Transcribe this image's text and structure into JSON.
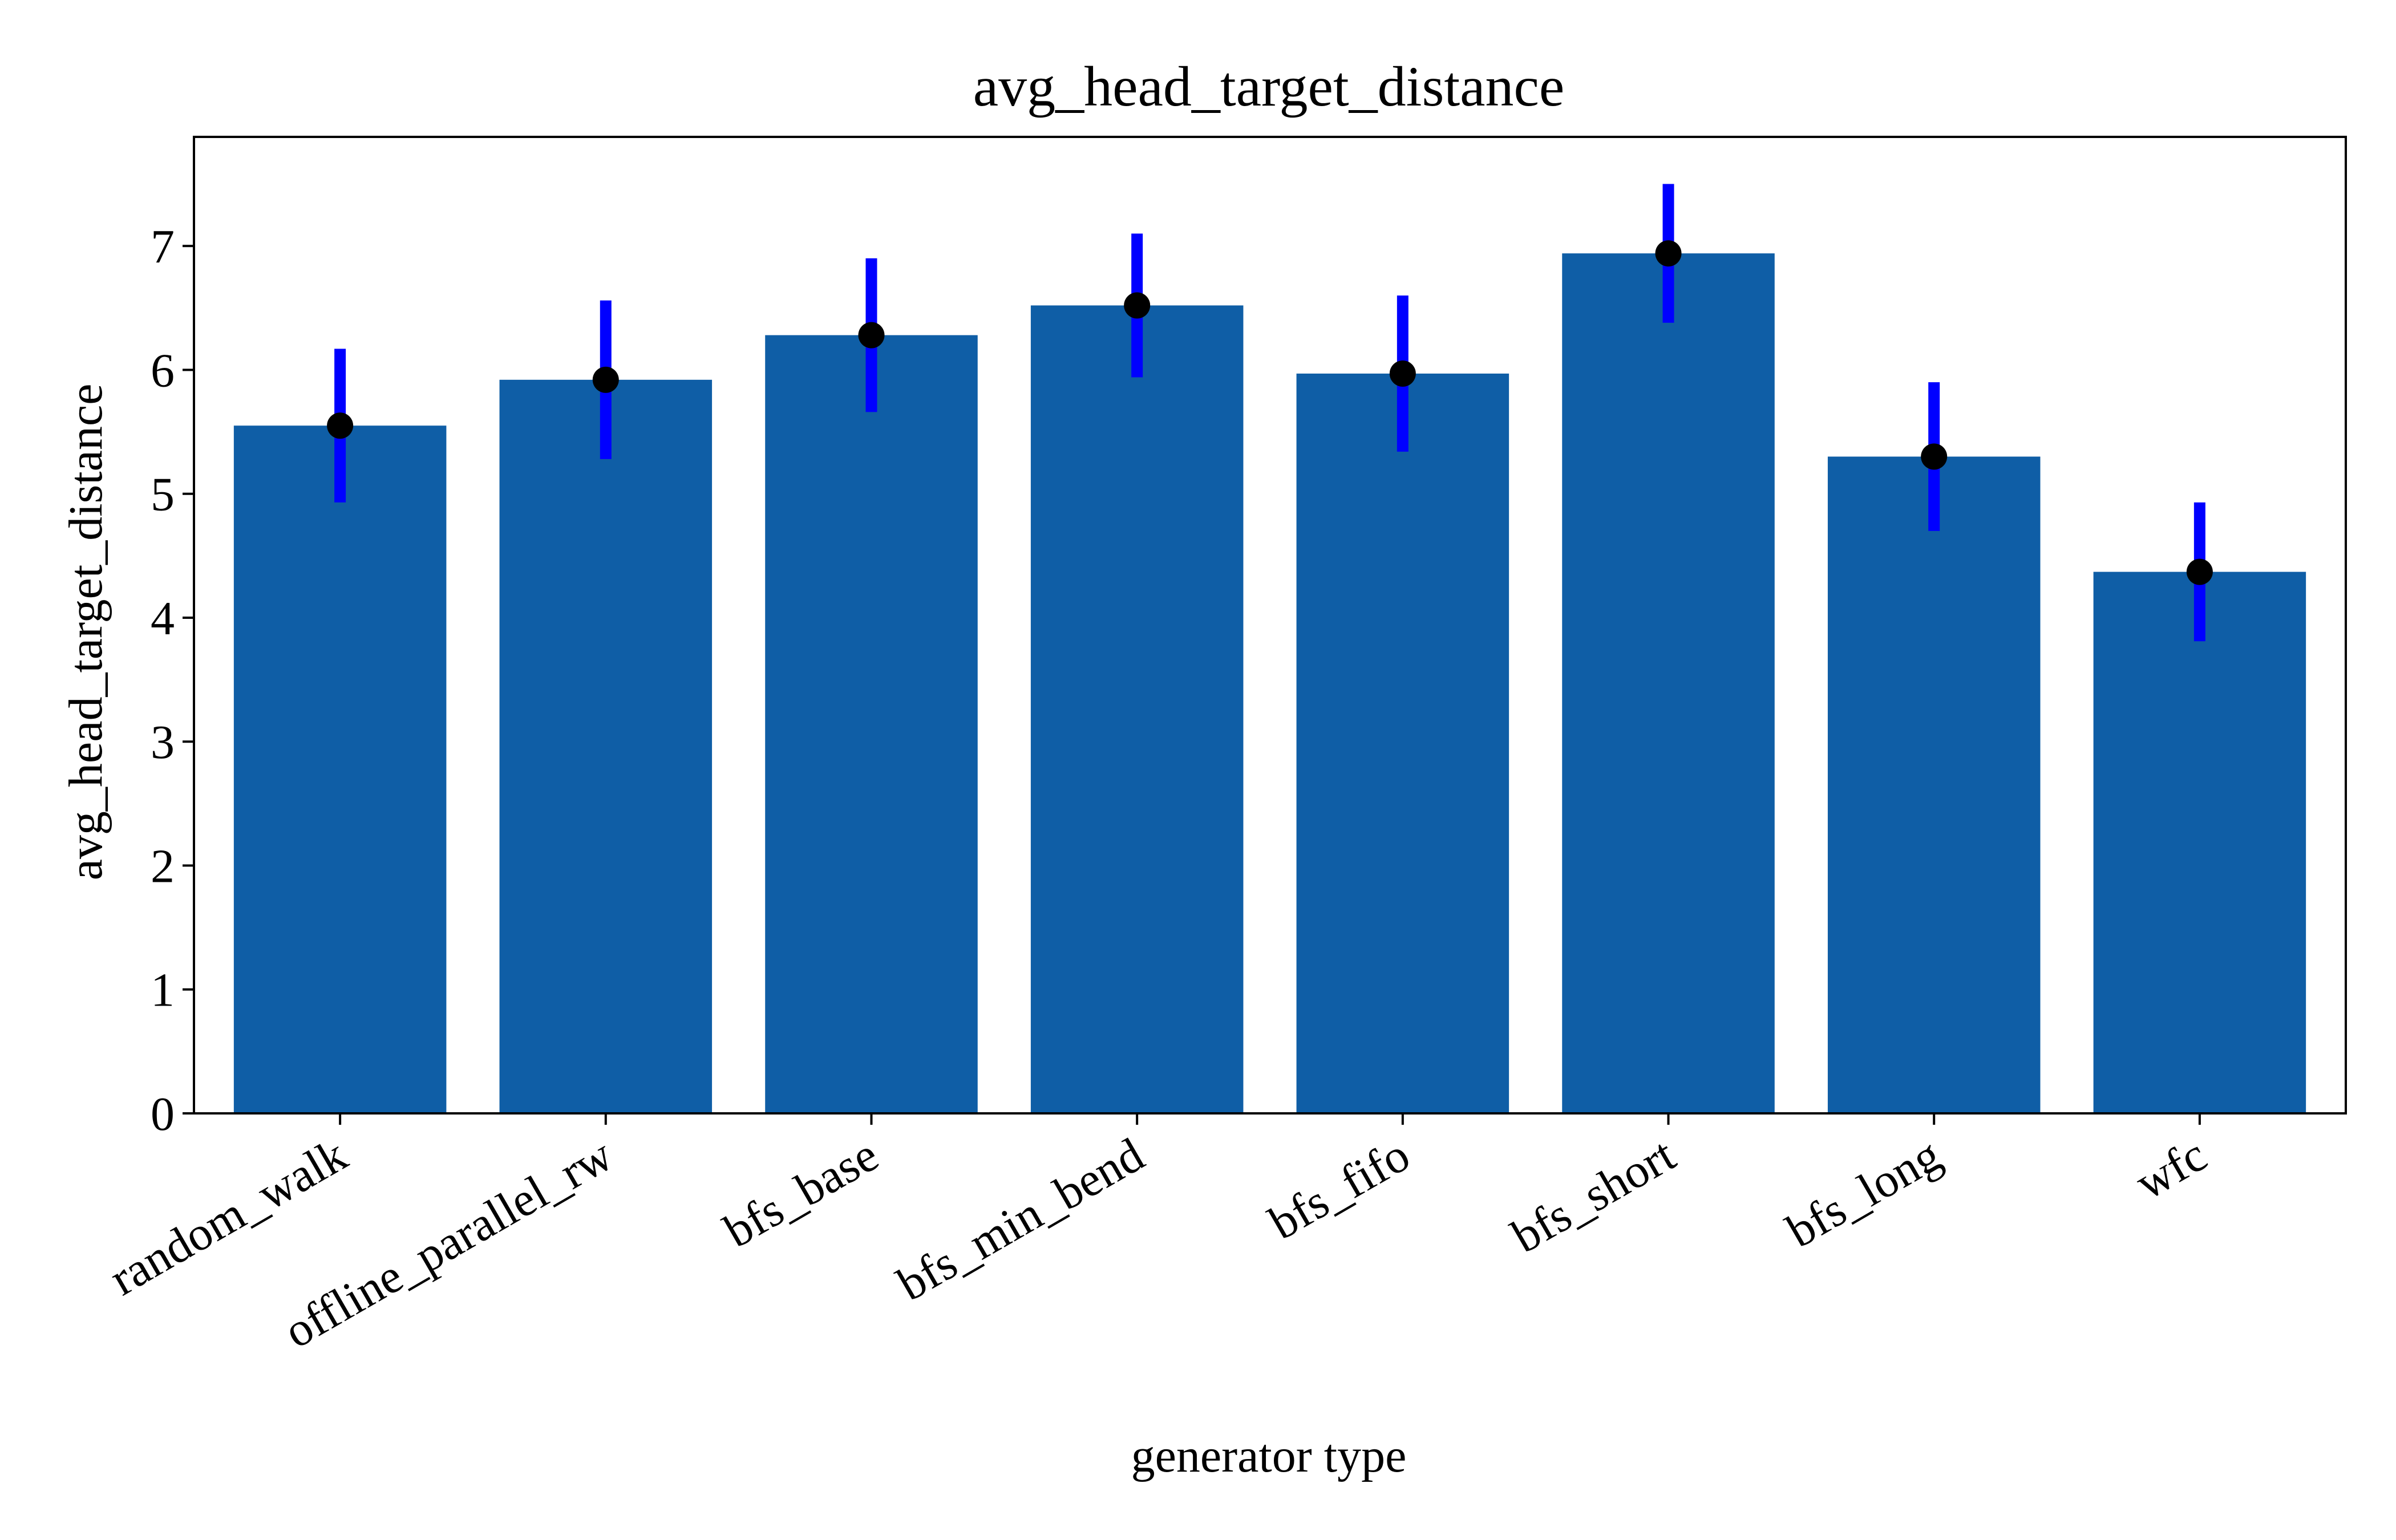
{
  "chart_data": {
    "type": "bar",
    "title": "avg_head_target_distance",
    "xlabel": "generator type",
    "ylabel": "avg_head_target_distance",
    "categories": [
      "random_walk",
      "offline_parallel_rw",
      "bfs_base",
      "bfs_min_bend",
      "bfs_fifo",
      "bfs_short",
      "bfs_long",
      "wfc"
    ],
    "values": [
      5.55,
      5.92,
      6.28,
      6.52,
      5.97,
      6.94,
      5.3,
      4.37
    ],
    "errors": [
      0.62,
      0.64,
      0.62,
      0.58,
      0.63,
      0.56,
      0.6,
      0.56
    ],
    "ylim": [
      0,
      7.88
    ],
    "yticks": [
      0,
      1,
      2,
      3,
      4,
      5,
      6,
      7
    ],
    "grid": false,
    "legend": "none",
    "colors": {
      "bar": "#0f5ea6",
      "error_bar": "#0000ff",
      "marker": "#000000"
    }
  }
}
